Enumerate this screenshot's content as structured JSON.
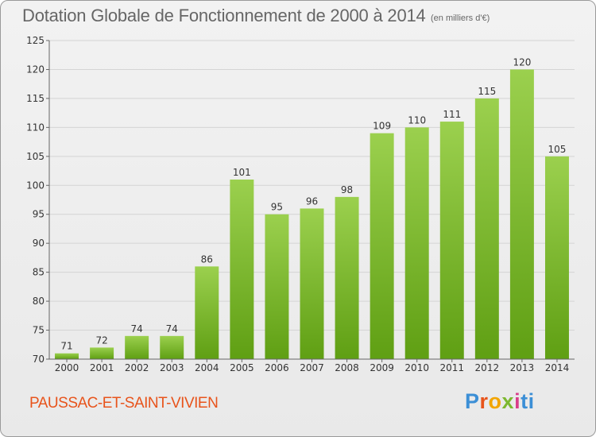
{
  "header": {
    "title": "Dotation Globale de Fonctionnement de 2000 à 2014",
    "unit": "(en milliers d'€)"
  },
  "footer": {
    "commune": "PAUSSAC-ET-SAINT-VIVIEN",
    "brand_letters": [
      "P",
      "r",
      "o",
      "x",
      "i",
      "ti"
    ]
  },
  "colors": {
    "bar_top": "#9bd04e",
    "bar_bottom": "#5f9f13",
    "grid": "#d4d4d4",
    "axis_text": "#333333",
    "title": "#666666",
    "commune": "#e8541c"
  },
  "chart_data": {
    "type": "bar",
    "categories": [
      "2000",
      "2001",
      "2002",
      "2003",
      "2004",
      "2005",
      "2006",
      "2007",
      "2008",
      "2009",
      "2010",
      "2011",
      "2012",
      "2013",
      "2014"
    ],
    "values": [
      71,
      72,
      74,
      74,
      86,
      101,
      95,
      96,
      98,
      109,
      110,
      111,
      115,
      120,
      105
    ],
    "data_labels": [
      "71",
      "72",
      "74",
      "74",
      "86",
      "101",
      "95",
      "96",
      "98",
      "109",
      "110",
      "111",
      "115",
      "120",
      "105"
    ],
    "title": "Dotation Globale de Fonctionnement de 2000 à 2014",
    "subtitle": "(en milliers d'€)",
    "xlabel": "",
    "ylabel": "",
    "ylim": [
      70,
      125
    ],
    "yticks": [
      70,
      75,
      80,
      85,
      90,
      95,
      100,
      105,
      110,
      115,
      120,
      125
    ],
    "grid": true,
    "legend": "none"
  }
}
